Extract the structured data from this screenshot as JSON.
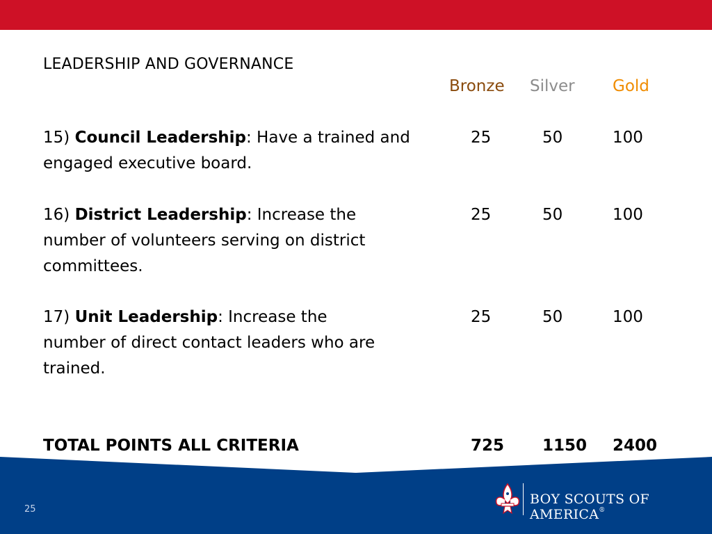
{
  "slide": {
    "title": "LEADERSHIP AND GOVERNANCE",
    "page_number": "25"
  },
  "columns": {
    "bronze": "Bronze",
    "silver": "Silver",
    "gold": "Gold"
  },
  "criteria": [
    {
      "number": "15)",
      "name": "Council Leadership",
      "desc": ": Have a trained and engaged executive board.",
      "bronze": "25",
      "silver": "50",
      "gold": "100"
    },
    {
      "number": "16)",
      "name": "District Leadership",
      "desc": ": Increase the number of volunteers serving on district committees.",
      "bronze": "25",
      "silver": "50",
      "gold": "100"
    },
    {
      "number": "17)",
      "name": "Unit Leadership",
      "desc": ": Increase the number of direct contact leaders who are trained.",
      "bronze": "25",
      "silver": "50",
      "gold": "100"
    }
  ],
  "totals": {
    "label": "TOTAL POINTS ALL CRITERIA",
    "bronze": "725",
    "silver": "1150",
    "gold": "2400"
  },
  "logo": {
    "text": "BOY SCOUTS OF AMERICA",
    "registered": "®"
  },
  "colors": {
    "red": "#ce1126",
    "blue": "#003f87",
    "bronze": "#8a4b0d",
    "silver": "#8c8c8c",
    "gold": "#f08c00"
  }
}
